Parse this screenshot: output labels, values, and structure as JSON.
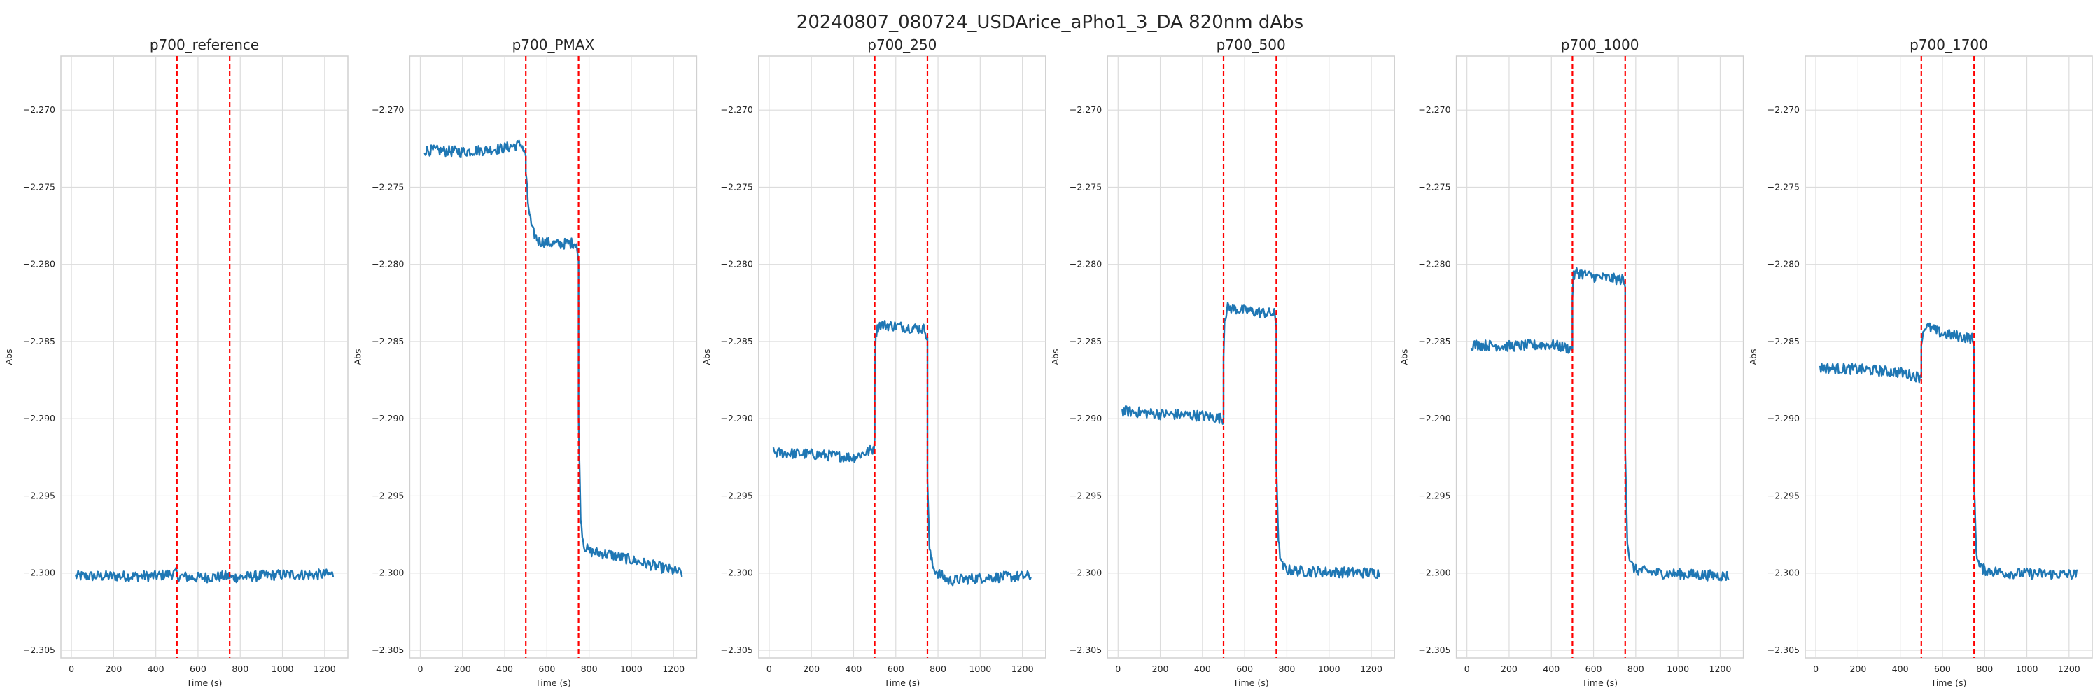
{
  "figure_title": "20240807_080724_USDArice_aPho1_3_DA 820nm dAbs",
  "colors": {
    "line": "#1f77b4",
    "marker": "#ff0000",
    "grid": "#dcdcdc",
    "frame": "#d0d0d0"
  },
  "chart_data": [
    {
      "type": "line",
      "title": "p700_reference",
      "xlabel": "Time (s)",
      "ylabel": "Abs",
      "xlim": [
        -50,
        1310
      ],
      "ylim": [
        -2.3055,
        -2.2665
      ],
      "grid": true,
      "x_ticks": [
        0,
        200,
        400,
        600,
        800,
        1000,
        1200
      ],
      "y_ticks": [
        -2.305,
        -2.3,
        -2.295,
        -2.29,
        -2.285,
        -2.28,
        -2.275,
        -2.27
      ],
      "y_tick_labels": [
        "−2.305",
        "−2.300",
        "−2.295",
        "−2.290",
        "−2.285",
        "−2.280",
        "−2.275",
        "−2.270"
      ],
      "markers": [
        500,
        750
      ],
      "series": [
        {
          "segments": [
            {
              "x": [
                20,
                200,
                400,
                500
              ],
              "y": [
                -2.3002,
                -2.3002,
                -2.3002,
                -2.3
              ]
            },
            {
              "x": [
                500,
                600,
                750
              ],
              "y": [
                -2.3002,
                -2.3003,
                -2.3002
              ]
            },
            {
              "x": [
                750,
                1000,
                1240
              ],
              "y": [
                -2.3003,
                -2.3001,
                -2.3001
              ]
            }
          ]
        }
      ]
    },
    {
      "type": "line",
      "title": "p700_PMAX",
      "xlabel": "Time (s)",
      "ylabel": "Abs",
      "xlim": [
        -50,
        1310
      ],
      "ylim": [
        -2.3055,
        -2.2665
      ],
      "grid": true,
      "x_ticks": [
        0,
        200,
        400,
        600,
        800,
        1000,
        1200
      ],
      "y_ticks": [
        -2.305,
        -2.3,
        -2.295,
        -2.29,
        -2.285,
        -2.28,
        -2.275,
        -2.27
      ],
      "y_tick_labels": [
        "−2.305",
        "−2.300",
        "−2.295",
        "−2.290",
        "−2.285",
        "−2.280",
        "−2.275",
        "−2.270"
      ],
      "markers": [
        500,
        750
      ],
      "series": [
        {
          "segments": [
            {
              "x": [
                20,
                200,
                380,
                480,
                500
              ],
              "y": [
                -2.2726,
                -2.2727,
                -2.2725,
                -2.2722,
                -2.273
              ]
            },
            {
              "x": [
                500,
                510,
                530,
                560,
                650,
                740,
                750
              ],
              "y": [
                -2.274,
                -2.276,
                -2.2778,
                -2.2785,
                -2.2787,
                -2.2786,
                -2.28
              ]
            },
            {
              "x": [
                750,
                760,
                775,
                800,
                900,
                1100,
                1240
              ],
              "y": [
                -2.29,
                -2.2965,
                -2.2982,
                -2.2986,
                -2.2988,
                -2.2995,
                -2.3
              ]
            }
          ]
        }
      ]
    },
    {
      "type": "line",
      "title": "p700_250",
      "xlabel": "Time (s)",
      "ylabel": "Abs",
      "xlim": [
        -50,
        1310
      ],
      "ylim": [
        -2.3055,
        -2.2665
      ],
      "grid": true,
      "x_ticks": [
        0,
        200,
        400,
        600,
        800,
        1000,
        1200
      ],
      "y_ticks": [
        -2.305,
        -2.3,
        -2.295,
        -2.29,
        -2.285,
        -2.28,
        -2.275,
        -2.27
      ],
      "y_tick_labels": [
        "−2.305",
        "−2.300",
        "−2.295",
        "−2.290",
        "−2.285",
        "−2.280",
        "−2.275",
        "−2.270"
      ],
      "markers": [
        500,
        750
      ],
      "series": [
        {
          "segments": [
            {
              "x": [
                20,
                200,
                400,
                490,
                500
              ],
              "y": [
                -2.2922,
                -2.2923,
                -2.2925,
                -2.292,
                -2.2915
              ]
            },
            {
              "x": [
                500,
                505,
                520,
                600,
                740,
                750
              ],
              "y": [
                -2.288,
                -2.2845,
                -2.2839,
                -2.284,
                -2.2842,
                -2.285
              ]
            },
            {
              "x": [
                750,
                760,
                775,
                800,
                850,
                1000,
                1240
              ],
              "y": [
                -2.294,
                -2.2985,
                -2.2996,
                -2.3,
                -2.3005,
                -2.3003,
                -2.3002
              ]
            }
          ]
        }
      ]
    },
    {
      "type": "line",
      "title": "p700_500",
      "xlabel": "Time (s)",
      "ylabel": "Abs",
      "xlim": [
        -50,
        1310
      ],
      "ylim": [
        -2.3055,
        -2.2665
      ],
      "grid": true,
      "x_ticks": [
        0,
        200,
        400,
        600,
        800,
        1000,
        1200
      ],
      "y_ticks": [
        -2.305,
        -2.3,
        -2.295,
        -2.29,
        -2.285,
        -2.28,
        -2.275,
        -2.27
      ],
      "y_tick_labels": [
        "−2.305",
        "−2.300",
        "−2.295",
        "−2.290",
        "−2.285",
        "−2.280",
        "−2.275",
        "−2.270"
      ],
      "markers": [
        500,
        750
      ],
      "series": [
        {
          "segments": [
            {
              "x": [
                20,
                200,
                400,
                500
              ],
              "y": [
                -2.2895,
                -2.2897,
                -2.2898,
                -2.29
              ]
            },
            {
              "x": [
                500,
                505,
                520,
                600,
                740,
                750
              ],
              "y": [
                -2.286,
                -2.2835,
                -2.2828,
                -2.283,
                -2.2832,
                -2.284
              ]
            },
            {
              "x": [
                750,
                760,
                775,
                800,
                900,
                1240
              ],
              "y": [
                -2.293,
                -2.298,
                -2.2995,
                -2.2998,
                -2.2999,
                -2.3
              ]
            }
          ]
        }
      ]
    },
    {
      "type": "line",
      "title": "p700_1000",
      "xlabel": "Time (s)",
      "ylabel": "Abs",
      "xlim": [
        -50,
        1310
      ],
      "ylim": [
        -2.3055,
        -2.2665
      ],
      "grid": true,
      "x_ticks": [
        0,
        200,
        400,
        600,
        800,
        1000,
        1200
      ],
      "y_ticks": [
        -2.305,
        -2.3,
        -2.295,
        -2.29,
        -2.285,
        -2.28,
        -2.275,
        -2.27
      ],
      "y_tick_labels": [
        "−2.305",
        "−2.300",
        "−2.295",
        "−2.290",
        "−2.285",
        "−2.280",
        "−2.275",
        "−2.270"
      ],
      "markers": [
        500,
        750
      ],
      "series": [
        {
          "segments": [
            {
              "x": [
                20,
                200,
                400,
                500
              ],
              "y": [
                -2.2852,
                -2.2853,
                -2.2852,
                -2.2855
              ]
            },
            {
              "x": [
                500,
                505,
                520,
                600,
                740,
                750
              ],
              "y": [
                -2.282,
                -2.2808,
                -2.2805,
                -2.2808,
                -2.281,
                -2.2815
              ]
            },
            {
              "x": [
                750,
                760,
                775,
                800,
                900,
                1240
              ],
              "y": [
                -2.292,
                -2.298,
                -2.2994,
                -2.2998,
                -2.3,
                -2.3002
              ]
            }
          ]
        }
      ]
    },
    {
      "type": "line",
      "title": "p700_1700",
      "xlabel": "Time (s)",
      "ylabel": "Abs",
      "xlim": [
        -50,
        1310
      ],
      "ylim": [
        -2.3055,
        -2.2665
      ],
      "grid": true,
      "x_ticks": [
        0,
        200,
        400,
        600,
        800,
        1000,
        1200
      ],
      "y_ticks": [
        -2.305,
        -2.3,
        -2.295,
        -2.29,
        -2.285,
        -2.28,
        -2.275,
        -2.27
      ],
      "y_tick_labels": [
        "−2.305",
        "−2.300",
        "−2.295",
        "−2.290",
        "−2.285",
        "−2.280",
        "−2.275",
        "−2.270"
      ],
      "markers": [
        500,
        750
      ],
      "series": [
        {
          "segments": [
            {
              "x": [
                20,
                200,
                400,
                490,
                500
              ],
              "y": [
                -2.2867,
                -2.2868,
                -2.287,
                -2.2873,
                -2.287
              ]
            },
            {
              "x": [
                500,
                505,
                520,
                600,
                740,
                750
              ],
              "y": [
                -2.2855,
                -2.2845,
                -2.284,
                -2.2845,
                -2.2848,
                -2.2855
              ]
            },
            {
              "x": [
                750,
                760,
                775,
                800,
                900,
                1240
              ],
              "y": [
                -2.294,
                -2.2985,
                -2.2996,
                -2.2998,
                -2.3,
                -2.3001
              ]
            }
          ]
        }
      ]
    }
  ]
}
